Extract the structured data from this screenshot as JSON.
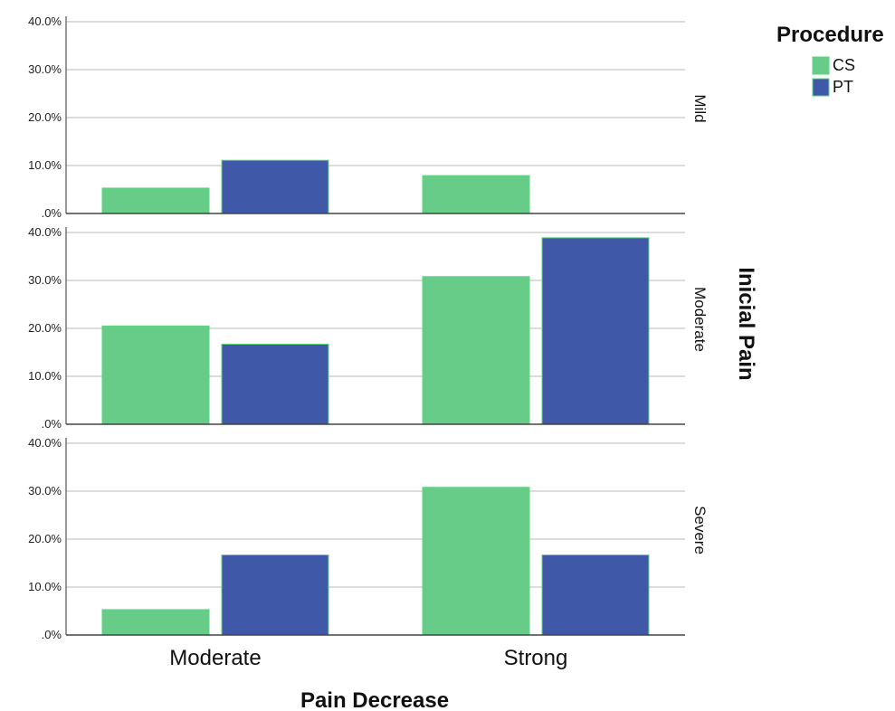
{
  "chart_data": {
    "type": "bar",
    "categories": [
      "Moderate",
      "Strong"
    ],
    "xlabel": "Pain Decrease",
    "row_facet_title": "Inicial Pain",
    "legend_title": "Procedure",
    "legend_position": "top-right",
    "ylim": [
      0,
      40
    ],
    "y_ticks": [
      ".0%",
      "10.0%",
      "20.0%",
      "30.0%",
      "40.0%"
    ],
    "grid": true,
    "colors": {
      "CS": "#66cc88",
      "PT": "#3f58a8"
    },
    "series_names": [
      "CS",
      "PT"
    ],
    "panels": [
      {
        "label": "Mild",
        "series": [
          {
            "name": "CS",
            "values": [
              5.3,
              7.9
            ]
          },
          {
            "name": "PT",
            "values": [
              11.1,
              0
            ]
          }
        ]
      },
      {
        "label": "Moderate",
        "series": [
          {
            "name": "CS",
            "values": [
              20.5,
              30.8
            ]
          },
          {
            "name": "PT",
            "values": [
              16.7,
              38.9
            ]
          }
        ]
      },
      {
        "label": "Severe",
        "series": [
          {
            "name": "CS",
            "values": [
              5.3,
              30.8
            ]
          },
          {
            "name": "PT",
            "values": [
              16.7,
              16.7
            ]
          }
        ]
      }
    ]
  }
}
